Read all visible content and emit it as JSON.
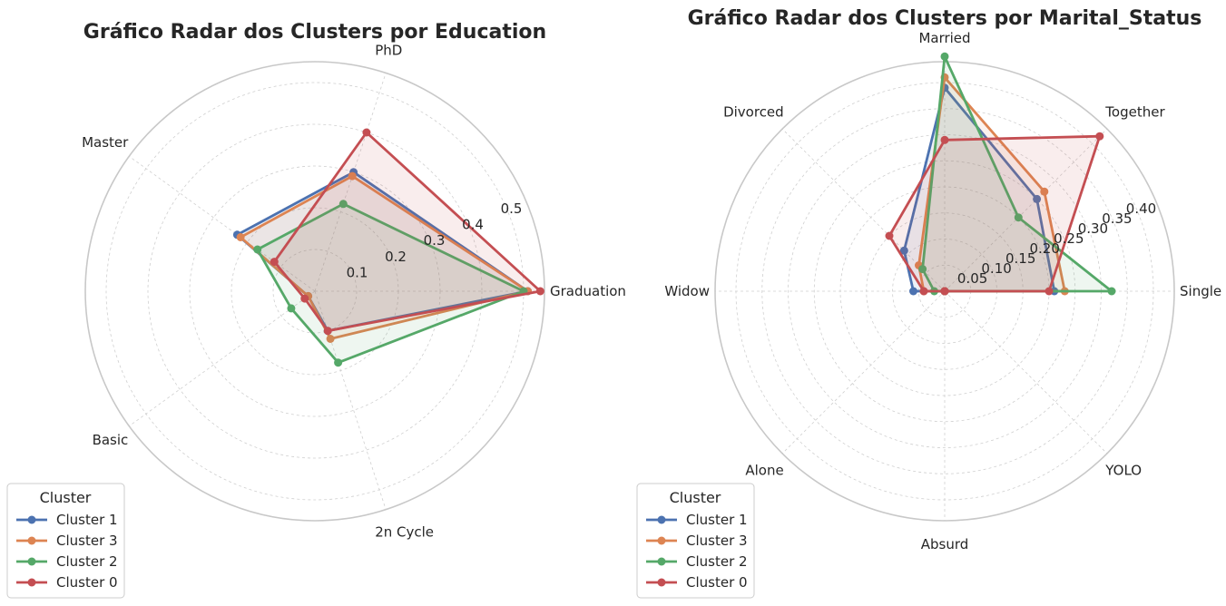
{
  "colors": {
    "Cluster 1": "#4c72b0",
    "Cluster 3": "#dd8452",
    "Cluster 2": "#55a868",
    "Cluster 0": "#c44e52"
  },
  "chart_data": [
    {
      "type": "radar",
      "title": "Gráfico Radar dos Clusters por Education",
      "categories": [
        "Graduation",
        "PhD",
        "Master",
        "Basic",
        "2n Cycle"
      ],
      "rmax": 0.55,
      "ticks": [
        0.1,
        0.2,
        0.3,
        0.4,
        0.5
      ],
      "tick_labels": [
        "0.1",
        "0.2",
        "0.3",
        "0.4",
        "0.5"
      ],
      "grid": true,
      "legend": {
        "title": "Cluster",
        "placement": "lower-left"
      },
      "series": [
        {
          "name": "Cluster 1",
          "values": [
            0.51,
            0.3,
            0.23,
            0.02,
            0.1
          ]
        },
        {
          "name": "Cluster 3",
          "values": [
            0.51,
            0.29,
            0.22,
            0.02,
            0.12
          ]
        },
        {
          "name": "Cluster 2",
          "values": [
            0.5,
            0.22,
            0.17,
            0.07,
            0.18
          ]
        },
        {
          "name": "Cluster 0",
          "values": [
            0.54,
            0.4,
            0.12,
            0.03,
            0.1
          ]
        }
      ]
    },
    {
      "type": "radar",
      "title": "Gráfico Radar dos Clusters por Marital_Status",
      "categories": [
        "Single",
        "Together",
        "Married",
        "Divorced",
        "Widow",
        "Alone",
        "Absurd",
        "YOLO"
      ],
      "rmax": 0.44,
      "ticks": [
        0.05,
        0.1,
        0.15,
        0.2,
        0.25,
        0.3,
        0.35,
        0.4
      ],
      "tick_labels": [
        "0.05",
        "0.10",
        "0.15",
        "0.20",
        "0.25",
        "0.30",
        "0.35",
        "0.40"
      ],
      "grid": true,
      "legend": {
        "title": "Cluster",
        "placement": "lower-left"
      },
      "series": [
        {
          "name": "Cluster 1",
          "values": [
            0.21,
            0.25,
            0.39,
            0.11,
            0.06,
            0.0,
            0.0,
            0.0
          ]
        },
        {
          "name": "Cluster 3",
          "values": [
            0.23,
            0.27,
            0.41,
            0.07,
            0.04,
            0.0,
            0.0,
            0.0
          ]
        },
        {
          "name": "Cluster 2",
          "values": [
            0.32,
            0.2,
            0.45,
            0.06,
            0.02,
            0.0,
            0.0,
            0.0
          ]
        },
        {
          "name": "Cluster 0",
          "values": [
            0.2,
            0.42,
            0.29,
            0.15,
            0.04,
            0.0,
            0.0,
            0.0
          ]
        }
      ]
    }
  ]
}
